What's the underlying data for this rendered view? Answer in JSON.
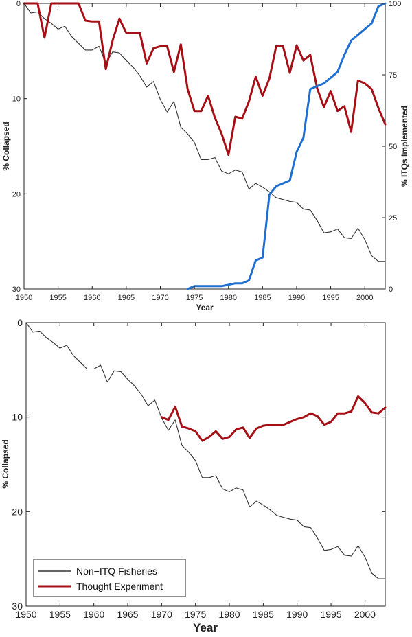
{
  "chart_data": [
    {
      "type": "line",
      "title": "",
      "xlabel": "Year",
      "ylabel": "% Collapsed",
      "y2label": "% ITQs Implemented",
      "xlim": [
        1950,
        2003
      ],
      "ylim": [
        0,
        30
      ],
      "y_reversed": true,
      "y2lim": [
        0,
        100
      ],
      "xticks": [
        1950,
        1955,
        1960,
        1965,
        1970,
        1975,
        1980,
        1985,
        1990,
        1995,
        2000
      ],
      "yticks": [
        0,
        10,
        20,
        30
      ],
      "y2ticks": [
        0,
        25,
        50,
        75,
        100
      ],
      "series": [
        {
          "name": "Non-ITQ Fisheries",
          "color": "#333333",
          "axis": "left",
          "x": [
            1950,
            1951,
            1952,
            1953,
            1954,
            1955,
            1956,
            1957,
            1958,
            1959,
            1960,
            1961,
            1962,
            1963,
            1964,
            1965,
            1966,
            1967,
            1968,
            1969,
            1970,
            1971,
            1972,
            1973,
            1974,
            1975,
            1976,
            1977,
            1978,
            1979,
            1980,
            1981,
            1982,
            1983,
            1984,
            1985,
            1986,
            1987,
            1988,
            1989,
            1990,
            1991,
            1992,
            1993,
            1994,
            1995,
            1996,
            1997,
            1998,
            1999,
            2000,
            2001,
            2002,
            2003
          ],
          "values": [
            0,
            1,
            0.9,
            1.6,
            2.1,
            2.7,
            2.4,
            3.5,
            4.2,
            4.9,
            4.9,
            4.5,
            6.3,
            5.1,
            5.2,
            6.0,
            6.7,
            7.6,
            8.8,
            8.2,
            10.1,
            11.4,
            10.3,
            13.0,
            13.7,
            14.6,
            16.4,
            16.4,
            16.2,
            17.6,
            17.9,
            17.5,
            17.7,
            19.5,
            18.9,
            19.3,
            19.8,
            20.4,
            20.6,
            20.8,
            20.9,
            21.6,
            21.7,
            22.8,
            24.1,
            24.0,
            23.7,
            24.6,
            24.7,
            23.6,
            24.8,
            26.5,
            27.1,
            27.1
          ]
        },
        {
          "name": "Thought Experiment (top)",
          "color": "#a50f15",
          "axis": "left",
          "x": [
            1950,
            1951,
            1952,
            1953,
            1954,
            1955,
            1956,
            1957,
            1958,
            1959,
            1960,
            1961,
            1962,
            1963,
            1964,
            1965,
            1966,
            1967,
            1968,
            1969,
            1970,
            1971,
            1972,
            1973,
            1974,
            1975,
            1976,
            1977,
            1978,
            1979,
            1980,
            1981,
            1982,
            1983,
            1984,
            1985,
            1986,
            1987,
            1988,
            1989,
            1990,
            1991,
            1992,
            1993,
            1994,
            1995,
            1996,
            1997,
            1998,
            1999,
            2000,
            2001,
            2002,
            2003
          ],
          "values": [
            0,
            0,
            0,
            3.6,
            0,
            0,
            0,
            0,
            0,
            1.8,
            1.9,
            1.9,
            6.9,
            3.9,
            1.6,
            3.1,
            3.1,
            3.1,
            6.3,
            4.7,
            4.5,
            4.5,
            7.2,
            4.3,
            9.0,
            11.3,
            11.3,
            9.7,
            12.0,
            13.7,
            15.9,
            11.9,
            12.1,
            10.3,
            7.7,
            9.7,
            7.9,
            4.5,
            4.5,
            7.3,
            4.4,
            6.0,
            5.4,
            8.9,
            10.9,
            9.2,
            11.3,
            10.8,
            13.5,
            8.1,
            8.4,
            9.0,
            11.0,
            12.7
          ]
        },
        {
          "name": "ITQs Implemented",
          "color": "#1f6fd1",
          "axis": "right",
          "x": [
            1974,
            1975,
            1976,
            1977,
            1978,
            1979,
            1980,
            1981,
            1982,
            1983,
            1984,
            1985,
            1986,
            1987,
            1988,
            1989,
            1990,
            1991,
            1992,
            1993,
            1994,
            1995,
            1996,
            1997,
            1998,
            1999,
            2000,
            2001,
            2002,
            2003
          ],
          "values": [
            0,
            1,
            1,
            1,
            1,
            1,
            1.5,
            2,
            2,
            3,
            10,
            11,
            33,
            36,
            37,
            38,
            48,
            53,
            70,
            71,
            72,
            74,
            76,
            82,
            87,
            89,
            91,
            93,
            99,
            100
          ]
        }
      ]
    },
    {
      "type": "line",
      "title": "",
      "xlabel": "Year",
      "ylabel": "% Collapsed",
      "xlim": [
        1950,
        2003
      ],
      "ylim": [
        0,
        30
      ],
      "y_reversed": true,
      "xticks": [
        1950,
        1955,
        1960,
        1965,
        1970,
        1975,
        1980,
        1985,
        1990,
        1995,
        2000
      ],
      "yticks": [
        0,
        10,
        20,
        30
      ],
      "legend_position": "bottom-left",
      "legend": [
        "Non−ITQ Fisheries",
        "Thought Experiment"
      ],
      "series": [
        {
          "name": "Non−ITQ Fisheries",
          "color": "#333333",
          "x": [
            1950,
            1951,
            1952,
            1953,
            1954,
            1955,
            1956,
            1957,
            1958,
            1959,
            1960,
            1961,
            1962,
            1963,
            1964,
            1965,
            1966,
            1967,
            1968,
            1969,
            1970,
            1971,
            1972,
            1973,
            1974,
            1975,
            1976,
            1977,
            1978,
            1979,
            1980,
            1981,
            1982,
            1983,
            1984,
            1985,
            1986,
            1987,
            1988,
            1989,
            1990,
            1991,
            1992,
            1993,
            1994,
            1995,
            1996,
            1997,
            1998,
            1999,
            2000,
            2001,
            2002,
            2003
          ],
          "values": [
            0,
            1,
            0.9,
            1.6,
            2.1,
            2.7,
            2.4,
            3.5,
            4.2,
            4.9,
            4.9,
            4.5,
            6.3,
            5.1,
            5.2,
            6.0,
            6.7,
            7.6,
            8.8,
            8.2,
            10.1,
            11.4,
            10.3,
            13.0,
            13.7,
            14.6,
            16.4,
            16.4,
            16.2,
            17.6,
            17.9,
            17.5,
            17.7,
            19.5,
            18.9,
            19.3,
            19.8,
            20.4,
            20.6,
            20.8,
            20.9,
            21.6,
            21.7,
            22.8,
            24.1,
            24.0,
            23.7,
            24.6,
            24.7,
            23.6,
            24.8,
            26.5,
            27.1,
            27.1
          ]
        },
        {
          "name": "Thought Experiment",
          "color": "#a50f15",
          "x": [
            1970,
            1971,
            1972,
            1973,
            1974,
            1975,
            1976,
            1977,
            1978,
            1979,
            1980,
            1981,
            1982,
            1983,
            1984,
            1985,
            1986,
            1987,
            1988,
            1989,
            1990,
            1991,
            1992,
            1993,
            1994,
            1995,
            1996,
            1997,
            1998,
            1999,
            2000,
            2001,
            2002,
            2003
          ],
          "values": [
            10.0,
            10.3,
            8.9,
            11.0,
            11.2,
            11.5,
            12.5,
            12.1,
            11.5,
            12.3,
            12.1,
            11.3,
            11.1,
            12.2,
            11.2,
            10.9,
            10.8,
            10.8,
            10.8,
            10.5,
            10.2,
            10.0,
            9.6,
            9.9,
            10.8,
            10.5,
            9.6,
            9.6,
            9.4,
            7.8,
            8.5,
            9.5,
            9.6,
            9.0
          ]
        }
      ]
    }
  ]
}
